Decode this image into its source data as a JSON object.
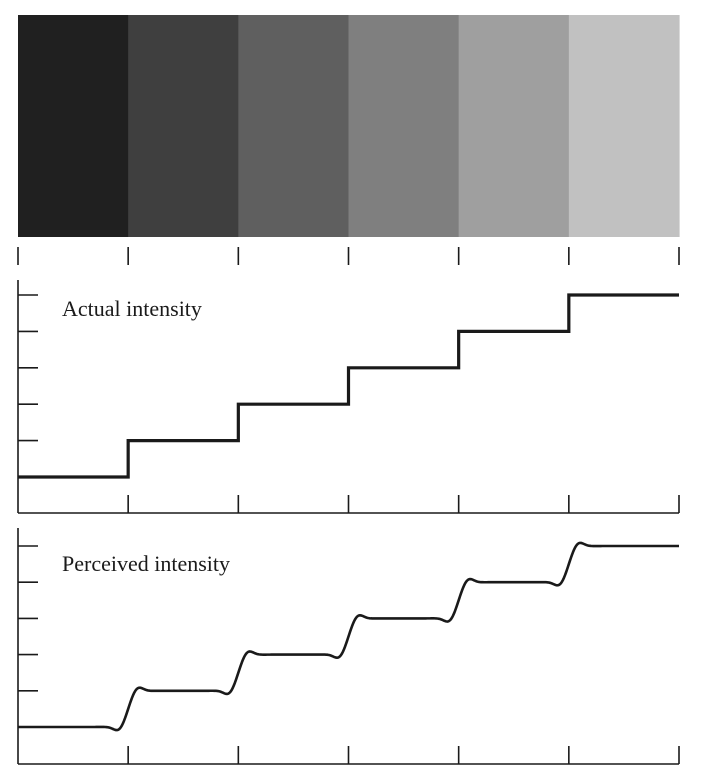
{
  "title": "",
  "bands": {
    "count": 6,
    "colors": [
      "#202020",
      "#3f3f3f",
      "#5f5f5f",
      "#7f7f7f",
      "#9f9f9f",
      "#c1c1c1"
    ]
  },
  "actual_plot": {
    "label": "Actual intensity",
    "levels": [
      0,
      1,
      2,
      3,
      4,
      5
    ],
    "y_ticks": 6
  },
  "perceived_plot": {
    "label": "Perceived intensity",
    "levels": [
      0,
      1,
      2,
      3,
      4,
      5
    ],
    "y_ticks": 6,
    "overshoot": 0.3
  },
  "chart_data": [
    {
      "type": "line",
      "title": "",
      "series": [
        {
          "name": "Actual intensity",
          "x": [
            0,
            1,
            2,
            3,
            4,
            5
          ],
          "values": [
            0,
            1,
            2,
            3,
            4,
            5
          ]
        }
      ],
      "xlabel": "",
      "ylabel": "",
      "grid": false
    },
    {
      "type": "line",
      "title": "",
      "series": [
        {
          "name": "Perceived intensity",
          "x": [
            0,
            1,
            2,
            3,
            4,
            5
          ],
          "values": [
            0,
            1,
            2,
            3,
            4,
            5
          ],
          "edge_overshoot": 0.3
        }
      ],
      "xlabel": "",
      "ylabel": "",
      "grid": false
    }
  ]
}
